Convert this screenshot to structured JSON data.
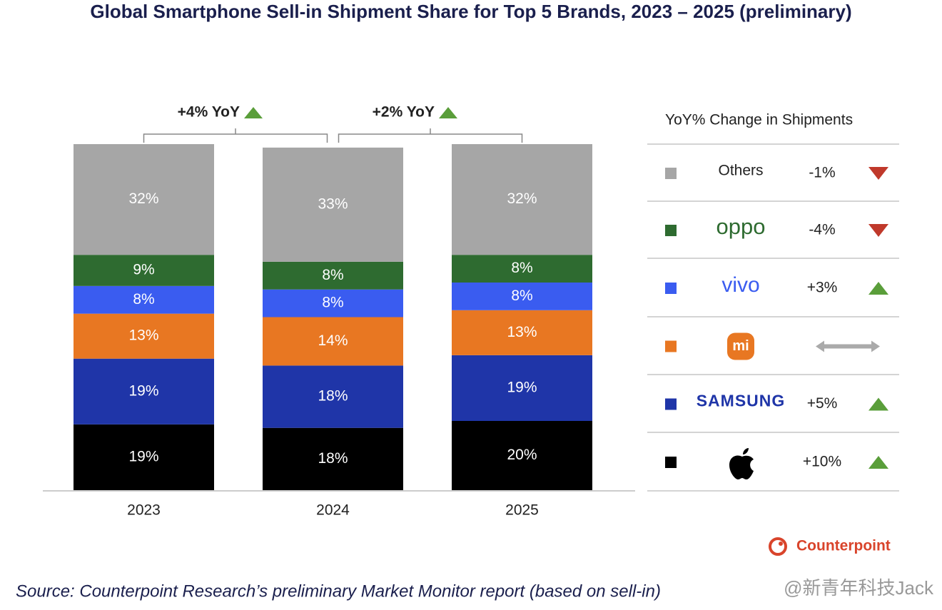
{
  "chart_data": {
    "type": "stacked_bar",
    "title": "Global Smartphone Sell-in Shipment Share for Top 5 Brands, 2023 – 2025 (preliminary)",
    "categories": [
      "2023",
      "2024",
      "2025"
    ],
    "ylim": [
      0,
      100
    ],
    "series": [
      {
        "color": "#000000",
        "values": [
          19,
          18,
          20
        ],
        "value_labels": [
          "19%",
          "18%",
          "20%"
        ],
        "yoy": "+10%",
        "trend": "up"
      },
      {
        "name": "SAMSUNG",
        "color": "#1f35a8",
        "values": [
          19,
          18,
          19
        ],
        "value_labels": [
          "19%",
          "18%",
          "19%"
        ],
        "yoy": "+5%",
        "trend": "up"
      },
      {
        "name": "mi",
        "color": "#e87722",
        "values": [
          13,
          14,
          13
        ],
        "value_labels": [
          "13%",
          "14%",
          "13%"
        ],
        "yoy": null,
        "trend": "flat"
      },
      {
        "name": "vivo",
        "color": "#3a5cf0",
        "values": [
          8,
          8,
          8
        ],
        "value_labels": [
          "8%",
          "8%",
          "8%"
        ],
        "yoy": "+3%",
        "trend": "up"
      },
      {
        "name": "oppo",
        "color": "#2e6b30",
        "values": [
          9,
          8,
          8
        ],
        "value_labels": [
          "9%",
          "8%",
          "8%"
        ],
        "yoy": "-4%",
        "trend": "down"
      },
      {
        "name": "Others",
        "color": "#a6a6a6",
        "values": [
          32,
          33,
          32
        ],
        "value_labels": [
          "32%",
          "33%",
          "32%"
        ],
        "yoy": "-1%",
        "trend": "down"
      }
    ],
    "annotations": [
      "+4% YoY",
      "+2% YoY"
    ],
    "legend_title": "YoY% Change in Shipments",
    "source": "Source: Counterpoint Research’s preliminary Market Monitor report (based on sell-in)",
    "brand": "Counterpoint",
    "watermark": "@新青年科技Jack"
  }
}
